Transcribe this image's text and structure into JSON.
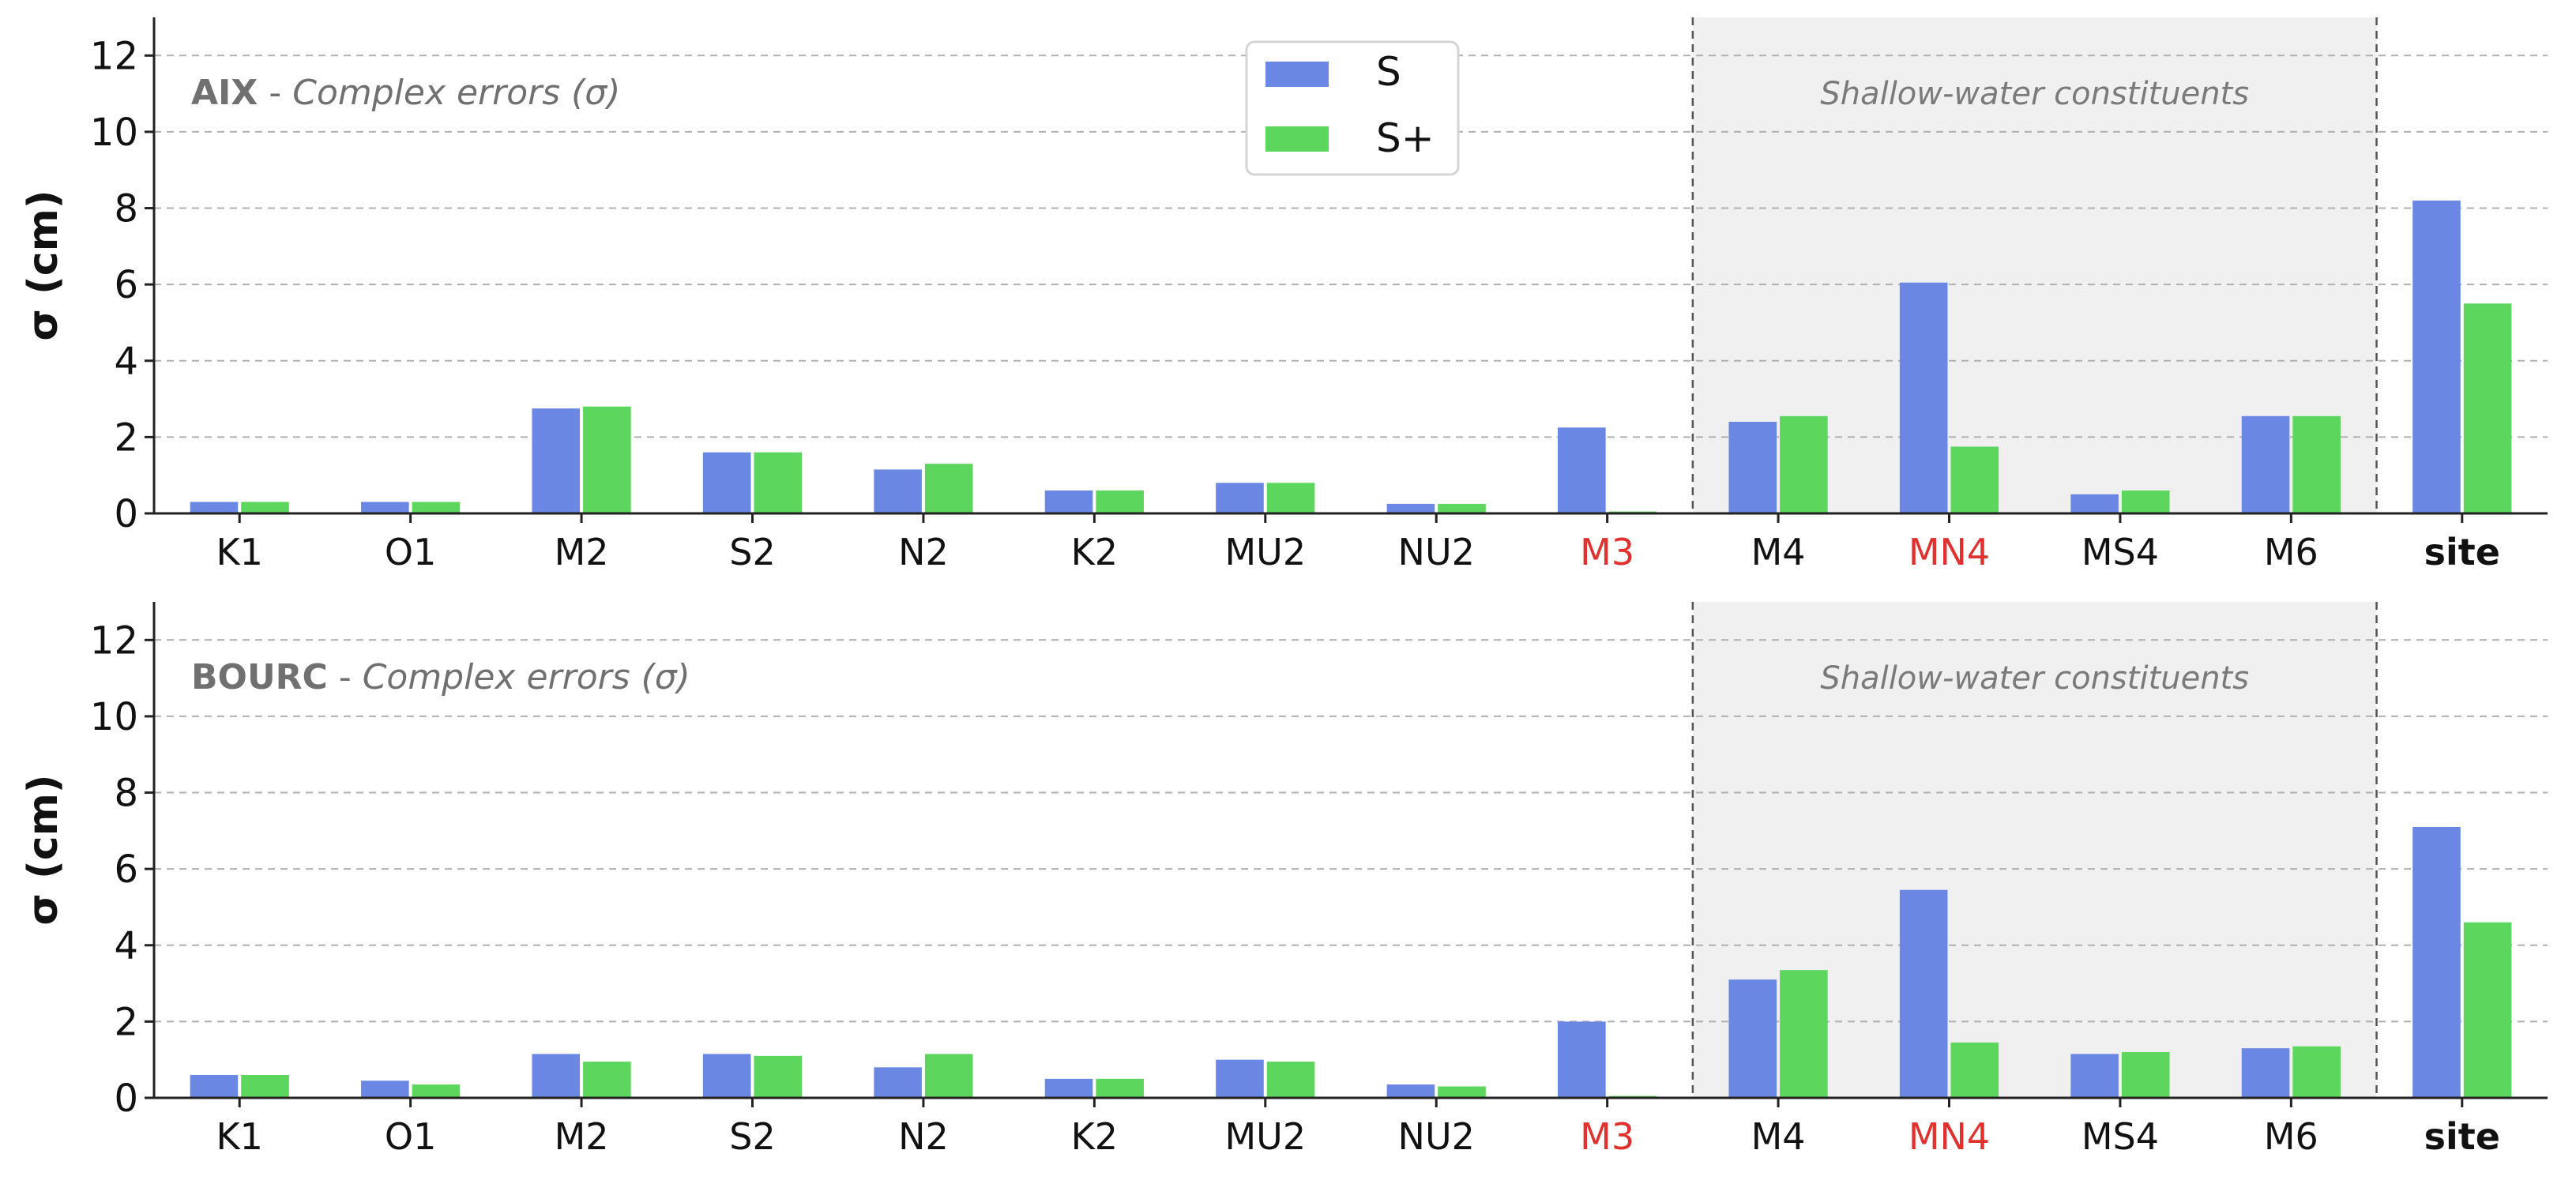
{
  "colors": {
    "S": "#6a88e3",
    "S_plus": "#5dd65d",
    "red_label": "#e0312f",
    "shade": "#f0f0f0",
    "grid": "#b0b0b0",
    "axis": "#222222",
    "panel_title": "#707070"
  },
  "legend": {
    "entries": [
      "S",
      "S+"
    ],
    "placement": "top-center (upper panel)"
  },
  "chart_data": [
    {
      "type": "bar",
      "panel_title_bold": "AIX",
      "panel_title_sep": " - ",
      "panel_title_italic": "Complex errors (σ)",
      "ylabel": "σ (cm)",
      "ylim": [
        0,
        13
      ],
      "yticks": [
        "0",
        "2",
        "4",
        "6",
        "8",
        "10",
        "12"
      ],
      "grid": "y-dashed",
      "categories": [
        "K1",
        "O1",
        "M2",
        "S2",
        "N2",
        "K2",
        "MU2",
        "NU2",
        "M3",
        "M4",
        "MN4",
        "MS4",
        "M6",
        "site"
      ],
      "red_categories": [
        "M3",
        "MN4"
      ],
      "bold_categories": [
        "site"
      ],
      "shaded_region": {
        "from": "M4",
        "to": "M6",
        "label": "Shallow-water constituents"
      },
      "series": [
        {
          "name": "S",
          "values": [
            0.3,
            0.3,
            2.75,
            1.6,
            1.15,
            0.6,
            0.8,
            0.25,
            2.25,
            2.4,
            6.05,
            0.5,
            2.55,
            8.2
          ]
        },
        {
          "name": "S+",
          "values": [
            0.3,
            0.3,
            2.8,
            1.6,
            1.3,
            0.6,
            0.8,
            0.25,
            0.05,
            2.55,
            1.75,
            0.6,
            2.55,
            5.5
          ]
        }
      ]
    },
    {
      "type": "bar",
      "panel_title_bold": "BOURC",
      "panel_title_sep": " - ",
      "panel_title_italic": "Complex errors (σ)",
      "ylabel": "σ (cm)",
      "ylim": [
        0,
        13
      ],
      "yticks": [
        "0",
        "2",
        "4",
        "6",
        "8",
        "10",
        "12"
      ],
      "grid": "y-dashed",
      "categories": [
        "K1",
        "O1",
        "M2",
        "S2",
        "N2",
        "K2",
        "MU2",
        "NU2",
        "M3",
        "M4",
        "MN4",
        "MS4",
        "M6",
        "site"
      ],
      "red_categories": [
        "M3",
        "MN4"
      ],
      "bold_categories": [
        "site"
      ],
      "shaded_region": {
        "from": "M4",
        "to": "M6",
        "label": "Shallow-water constituents"
      },
      "series": [
        {
          "name": "S",
          "values": [
            0.6,
            0.45,
            1.15,
            1.15,
            0.8,
            0.5,
            1.0,
            0.35,
            2.0,
            3.1,
            5.45,
            1.15,
            1.3,
            7.1
          ]
        },
        {
          "name": "S+",
          "values": [
            0.6,
            0.35,
            0.95,
            1.1,
            1.15,
            0.5,
            0.95,
            0.3,
            0.05,
            3.35,
            1.45,
            1.2,
            1.35,
            4.6
          ]
        }
      ]
    }
  ]
}
